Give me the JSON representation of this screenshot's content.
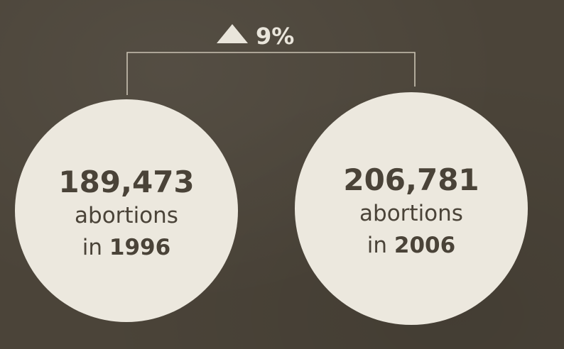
{
  "chart_data": {
    "type": "bubble-comparison",
    "change": {
      "direction": "up",
      "value": "9%"
    },
    "items": [
      {
        "value": 189473,
        "value_text": "189,473",
        "label": "abortions",
        "prefix": "in",
        "year": "1996"
      },
      {
        "value": 206781,
        "value_text": "206,781",
        "label": "abortions",
        "prefix": "in",
        "year": "2006"
      }
    ]
  },
  "colors": {
    "background": "#4b4439",
    "bubble": "#ece8de",
    "text": "#4a4338",
    "accent": "#e9e5db",
    "bracket": "#c9c2b2"
  },
  "icons": {
    "change": "triangle-up-icon"
  }
}
